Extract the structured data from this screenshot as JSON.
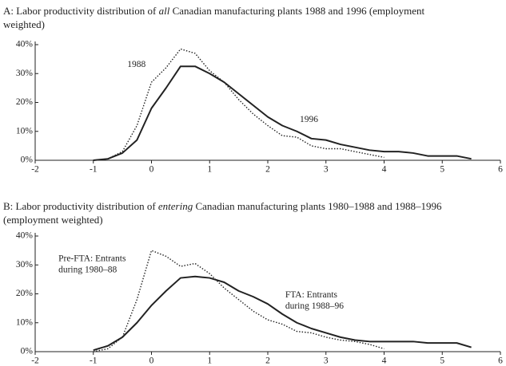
{
  "chart_data": [
    {
      "type": "line",
      "title": [
        "A: Labor productivity distribution of ",
        "all",
        " Canadian manufacturing plants 1988 and 1996 (employment weighted)"
      ],
      "x": [
        -1,
        -0.75,
        -0.5,
        -0.25,
        0,
        0.25,
        0.5,
        0.75,
        1,
        1.25,
        1.5,
        1.75,
        2,
        2.25,
        2.5,
        2.75,
        3,
        3.25,
        3.5,
        3.75,
        4,
        4.25,
        4.5,
        4.75,
        5,
        5.25,
        5.5
      ],
      "series": [
        {
          "name": [
            "1996"
          ],
          "color": "#222222",
          "style": "solid",
          "values": [
            0,
            0.5,
            2.5,
            7,
            18,
            25,
            32.5,
            32.5,
            30,
            27,
            23,
            19,
            15,
            12,
            10,
            7.5,
            7,
            5.5,
            4.5,
            3.5,
            3,
            3,
            2.5,
            1.5,
            1.5,
            1.5,
            0.5
          ]
        },
        {
          "name": [
            "1988"
          ],
          "color": "#222222",
          "style": "dotted",
          "values": [
            0,
            0.5,
            3,
            12,
            27,
            32,
            38.5,
            37,
            31,
            27,
            21,
            16,
            12,
            8.5,
            8,
            5,
            4,
            4,
            3,
            2,
            1,
            null,
            null,
            null,
            null,
            null,
            null
          ]
        }
      ],
      "xlim": [
        -2,
        6
      ],
      "xticks": [
        -2,
        -1,
        0,
        1,
        2,
        3,
        4,
        5,
        6
      ],
      "ylim": [
        0,
        40
      ],
      "yticks": [
        {
          "value": 0,
          "label": "0%"
        },
        {
          "value": 10,
          "label": "10%"
        },
        {
          "value": 20,
          "label": "20%"
        },
        {
          "value": 30,
          "label": "30%"
        },
        {
          "value": 40,
          "label": "40%"
        }
      ]
    },
    {
      "type": "line",
      "title": [
        "B: Labor productivity distribution of ",
        "entering",
        " Canadian manufacturing plants 1980–1988 and 1988–1996 (employment weighted)"
      ],
      "x": [
        -1,
        -0.75,
        -0.5,
        -0.25,
        0,
        0.25,
        0.5,
        0.75,
        1,
        1.25,
        1.5,
        1.75,
        2,
        2.25,
        2.5,
        2.75,
        3,
        3.25,
        3.5,
        3.75,
        4,
        4.25,
        4.5,
        4.75,
        5,
        5.25,
        5.5
      ],
      "series": [
        {
          "name": [
            "FTA: Entrants",
            "during 1988–96"
          ],
          "color": "#222222",
          "style": "solid",
          "values": [
            0.5,
            2,
            5,
            10,
            16,
            21,
            25.5,
            26,
            25.5,
            24,
            21,
            19,
            16.5,
            13,
            10,
            8,
            6.5,
            5,
            4,
            3.5,
            3.5,
            3.5,
            3.5,
            3,
            3,
            3,
            1.5
          ]
        },
        {
          "name": [
            "Pre-FTA: Entrants",
            "during 1980–88"
          ],
          "color": "#222222",
          "style": "dotted",
          "values": [
            0,
            1,
            5,
            18,
            35,
            33,
            29.5,
            30.5,
            27,
            22,
            18,
            14,
            11,
            9.5,
            7,
            6.5,
            5,
            4,
            3.5,
            2.5,
            1,
            null,
            null,
            null,
            null,
            null,
            null
          ]
        }
      ],
      "xlim": [
        -2,
        6
      ],
      "xticks": [
        -2,
        -1,
        0,
        1,
        2,
        3,
        4,
        5,
        6
      ],
      "ylim": [
        0,
        40
      ],
      "yticks": [
        {
          "value": 0,
          "label": "0%"
        },
        {
          "value": 10,
          "label": "10%"
        },
        {
          "value": 20,
          "label": "20%"
        },
        {
          "value": 30,
          "label": "30%"
        },
        {
          "value": 40,
          "label": "40%"
        }
      ]
    }
  ]
}
